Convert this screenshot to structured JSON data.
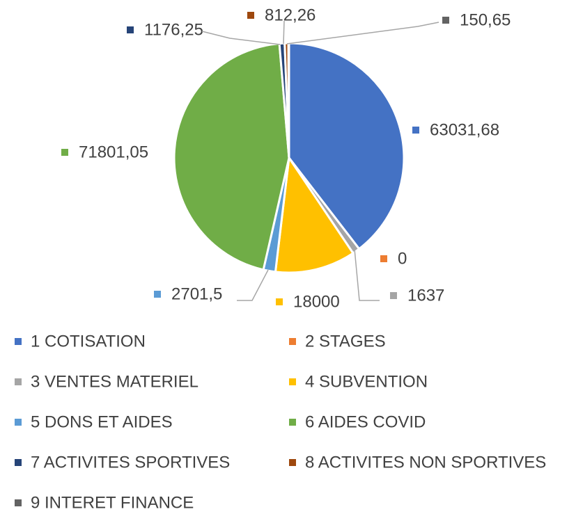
{
  "chart_data": {
    "type": "pie",
    "categories": [
      "1 COTISATION",
      "2 STAGES",
      "3 VENTES MATERIEL",
      "4 SUBVENTION",
      "5 DONS ET AIDES",
      "6 AIDES COVID",
      "7 ACTIVITES SPORTIVES",
      "8 ACTIVITES NON SPORTIVES",
      "9 INTERET FINANCE"
    ],
    "values": [
      63031.68,
      0,
      1637,
      18000,
      2701.5,
      71801.05,
      1176.25,
      812.26,
      150.65
    ],
    "value_labels": [
      "63031,68",
      "0",
      "1637",
      "18000",
      "2701,5",
      "71801,05",
      "1176,25",
      "812,26",
      "150,65"
    ],
    "colors": [
      "#4472c4",
      "#ed7d31",
      "#a5a5a5",
      "#ffc000",
      "#5b9bd5",
      "#70ad47",
      "#264478",
      "#9e480e",
      "#636363"
    ],
    "legend": "bottom"
  }
}
